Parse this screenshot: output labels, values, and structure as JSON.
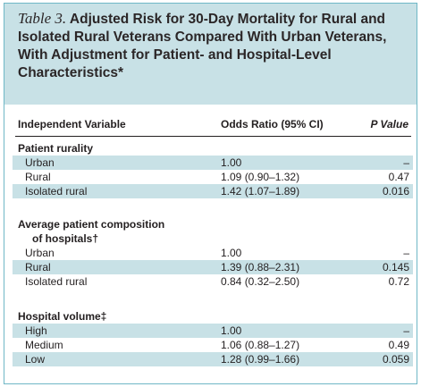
{
  "title": {
    "table_number": "Table 3.",
    "lines": [
      "Adjusted Risk for 30-Day Mortality for Rural and",
      "Isolated Rural Veterans Compared With Urban Veterans,",
      "With Adjustment for Patient- and Hospital-Level",
      "Characteristics*"
    ]
  },
  "columns": {
    "variable": "Independent Variable",
    "odds_ratio": "Odds Ratio (95% CI)",
    "p_value": "P Value"
  },
  "sections": [
    {
      "title_lines": [
        "Patient rurality"
      ],
      "rows": [
        {
          "label": "Urban",
          "or": "1.00",
          "p": "–"
        },
        {
          "label": "Rural",
          "or": "1.09 (0.90–1.32)",
          "p": "0.47"
        },
        {
          "label": "Isolated rural",
          "or": "1.42 (1.07–1.89)",
          "p": "0.016"
        }
      ]
    },
    {
      "title_lines": [
        "Average patient composition",
        "of hospitals†"
      ],
      "rows": [
        {
          "label": "Urban",
          "or": "1.00",
          "p": "–"
        },
        {
          "label": "Rural",
          "or": "1.39 (0.88–2.31)",
          "p": "0.145"
        },
        {
          "label": "Isolated rural",
          "or": "0.84 (0.32–2.50)",
          "p": "0.72"
        }
      ]
    },
    {
      "title_lines": [
        "Hospital volume‡"
      ],
      "rows": [
        {
          "label": "High",
          "or": "1.00",
          "p": "–"
        },
        {
          "label": "Medium",
          "or": "1.06 (0.88–1.27)",
          "p": "0.49"
        },
        {
          "label": "Low",
          "or": "1.28 (0.99–1.66)",
          "p": "0.059"
        }
      ]
    }
  ]
}
